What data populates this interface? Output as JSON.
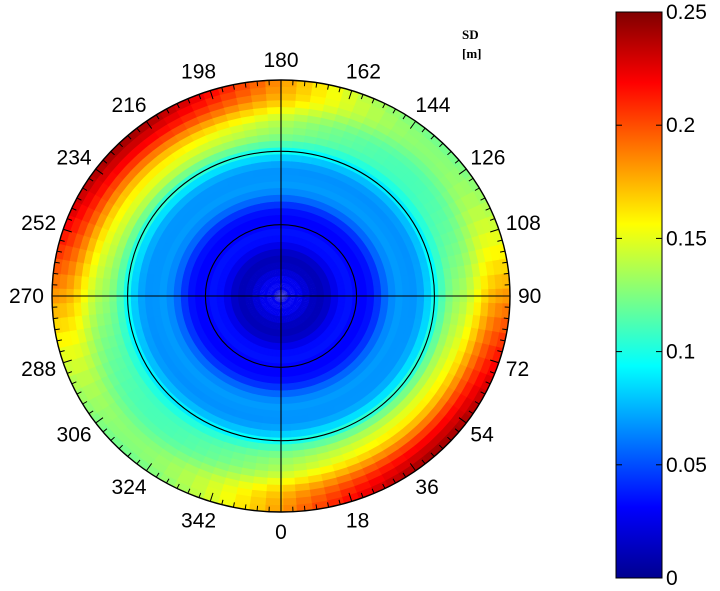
{
  "chart_data": {
    "type": "heatmap",
    "projection": "polar",
    "title": "",
    "colorbar_title": "SD",
    "colorbar_unit": "[m]",
    "colormap": "jet",
    "clim": [
      0,
      0.25
    ],
    "colorbar_ticks": [
      0,
      0.05,
      0.1,
      0.15,
      0.2,
      0.25
    ],
    "colorbar_tick_labels": [
      "0",
      "0.05",
      "0.1",
      "0.15",
      "0.2",
      "0.25"
    ],
    "angle_ticks_deg": [
      0,
      18,
      36,
      54,
      72,
      90,
      108,
      126,
      144,
      162,
      180,
      198,
      216,
      234,
      252,
      270,
      288,
      306,
      324,
      342
    ],
    "angle_tick_labels": [
      "0",
      "18",
      "36",
      "54",
      "72",
      "90",
      "108",
      "126",
      "144",
      "162",
      "180",
      "198",
      "216",
      "234",
      "252",
      "270",
      "288",
      "306",
      "324",
      "342"
    ],
    "angle_zero_direction": "bottom",
    "angle_direction": "counterclockwise",
    "radial_rings": [
      0.33,
      0.67,
      1.0
    ],
    "field": {
      "radial_profile": [
        {
          "r": 0.0,
          "sd": 0.02
        },
        {
          "r": 0.2,
          "sd": 0.022
        },
        {
          "r": 0.33,
          "sd": 0.03
        },
        {
          "r": 0.45,
          "sd": 0.055
        },
        {
          "r": 0.55,
          "sd": 0.065
        },
        {
          "r": 0.67,
          "sd": 0.085
        },
        {
          "r": 0.8,
          "sd": 0.11
        },
        {
          "r": 0.9,
          "sd": 0.14
        },
        {
          "r": 1.0,
          "sd": 0.16
        }
      ],
      "anisotropy_peak_deg": [
        45,
        225
      ],
      "anisotropy_low_deg": [
        135,
        315
      ],
      "edge_peak_sd": 0.245,
      "edge_low_sd": 0.12
    }
  }
}
